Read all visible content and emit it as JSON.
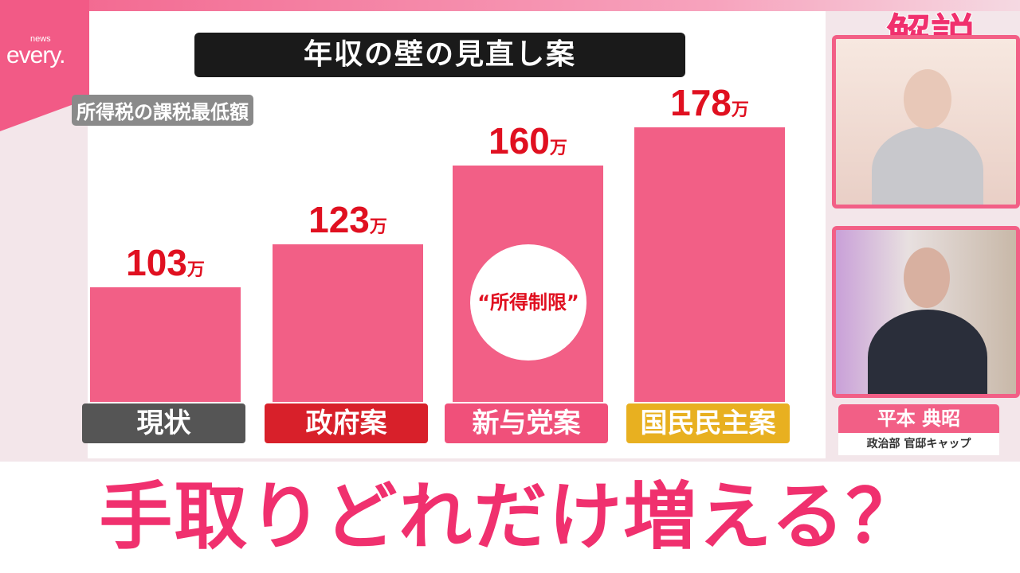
{
  "logo": {
    "small": "news",
    "main": "every."
  },
  "corner_label": "解説",
  "chart_data": {
    "type": "bar",
    "title": "年収の壁の見直し案",
    "subtitle": "所得税の課税最低額",
    "categories": [
      "現状",
      "政府案",
      "新与党案",
      "国民民主案"
    ],
    "values": [
      103,
      123,
      160,
      178
    ],
    "unit": "万",
    "category_colors": [
      "#555555",
      "#d8202a",
      "#f0507a",
      "#e8b020"
    ],
    "bar_color": "#f25f86",
    "value_color": "#e01020",
    "annotation": "“所得制限”",
    "annotation_category": "新与党案",
    "grid": false
  },
  "caption": "手取りどれだけ増える？",
  "nameplate": {
    "name": "平本 典昭",
    "role": "政治部 官邸キャップ"
  }
}
